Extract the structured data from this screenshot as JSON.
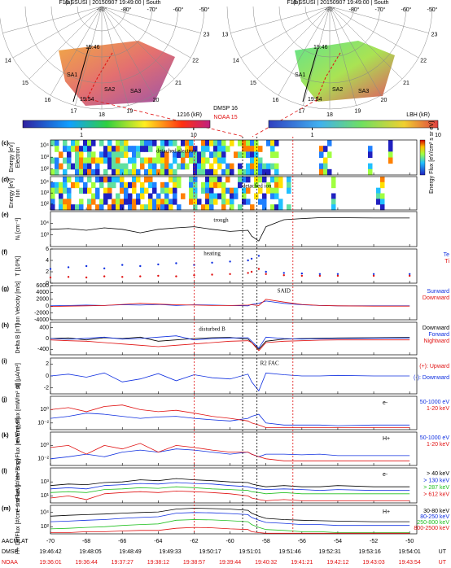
{
  "polar_plots": [
    {
      "label": "(a)",
      "header": "F16 SSUSI  |  20150907 19:49:00  |  South",
      "lat_labels": [
        "-90°",
        "-80°",
        "-70°",
        "-60°",
        "-50°"
      ],
      "hour_labels": [
        "13",
        "14",
        "15",
        "16",
        "17",
        "18",
        "19",
        "20",
        "21",
        "22",
        "23"
      ],
      "notes": [
        "19:46",
        "SA1",
        "SA2",
        "SA3",
        "19:54"
      ],
      "colorbar": {
        "label": "1216 (kR)",
        "lim": [
          0.3,
          14
        ],
        "ticks": [
          1,
          10
        ]
      }
    },
    {
      "label": "(b)",
      "header": "F16 SSUSI  |  20150907 19:49:00  |  South",
      "lat_labels": [
        "-90°",
        "-80°",
        "-70°",
        "-60°",
        "-50°"
      ],
      "hour_labels": [
        "13",
        "14",
        "15",
        "16",
        "17",
        "18",
        "19",
        "20",
        "21",
        "22",
        "23"
      ],
      "notes": [
        "19:46",
        "SA1",
        "SA2",
        "SA3",
        "19:54"
      ],
      "colorbar": {
        "label": "LBH (kR)",
        "lim": [
          0.45,
          10
        ],
        "ticks": [
          1,
          10
        ]
      }
    }
  ],
  "satellites": [
    {
      "name": "DMSP 16",
      "color": "#000000"
    },
    {
      "name": "NOAA 15",
      "color": "#e01010"
    }
  ],
  "panels": {
    "x": [
      -70,
      -69,
      -68,
      -67,
      -66,
      -65,
      -64,
      -63,
      -62,
      -61,
      -60,
      -59,
      -58.8,
      -58.4,
      -58,
      -57,
      -56,
      -55,
      -54,
      -52,
      -50
    ],
    "xlim": [
      -70,
      -49.6
    ],
    "xticks": [
      -70,
      -68,
      -66,
      -64,
      -62,
      -60,
      -58,
      -56,
      -54,
      -52,
      -50
    ],
    "x_label": "AACMLAT",
    "vlines": [
      {
        "x": -62,
        "color": "#e01010"
      },
      {
        "x": -59.3,
        "color": "#000000"
      },
      {
        "x": -58.5,
        "color": "#000000"
      },
      {
        "x": -56.5,
        "color": "#e01010"
      }
    ],
    "items": [
      {
        "label": "(c)",
        "type": "spectrogram",
        "ylabel": "Energy [eV]",
        "species": "Electron",
        "log": true,
        "ylim": [
          30,
          30000
        ],
        "yticks": [
          {
            "value": 100,
            "label": "10²"
          },
          {
            "value": 1000,
            "label": "10³"
          },
          {
            "value": 10000,
            "label": "10⁴"
          }
        ],
        "annotations": [
          "detached electron"
        ],
        "colorbar_label": "Energy Flux [eV/cm² s sr eV]"
      },
      {
        "label": "(d)",
        "type": "spectrogram",
        "ylabel": "Energy [eV]",
        "species": "Ion",
        "log": true,
        "ylim": [
          30,
          30000
        ],
        "yticks": [
          {
            "value": 100,
            "label": "10²"
          },
          {
            "value": 1000,
            "label": "10³"
          },
          {
            "value": 10000,
            "label": "10⁴"
          }
        ],
        "annotations": [
          "detached ion"
        ]
      },
      {
        "label": "(e)",
        "type": "line",
        "ylabel": "Nᵢ [cm⁻³]",
        "log": true,
        "ylim": [
          100,
          100000
        ],
        "yticks": [
          {
            "value": 1000,
            "label": "10³"
          },
          {
            "value": 10000,
            "label": "10⁴"
          }
        ],
        "series": [
          {
            "color": "#000000",
            "values": [
              3000,
              3500,
              2500,
              4000,
              3000,
              1500,
              3000,
              4000,
              5000,
              3000,
              2000,
              2500,
              800,
              300,
              5000,
              20000,
              25000,
              30000,
              30000,
              28000,
              28000
            ]
          }
        ],
        "annotations": [
          "trough"
        ]
      },
      {
        "label": "(f)",
        "type": "scatter",
        "ylabel": "T [10³K]",
        "ylim": [
          0,
          6
        ],
        "yticks": [
          0,
          2,
          4,
          6
        ],
        "series": [
          {
            "name": "Te",
            "color": "#1030e0",
            "values": [
              2.5,
              2.8,
              3,
              2.6,
              3.2,
              3,
              3.3,
              3.5,
              3.2,
              3.6,
              3.8,
              4,
              4.3,
              4.8,
              2,
              1.8,
              1.7,
              1.6,
              1.6,
              1.6,
              1.6
            ]
          },
          {
            "name": "Ti",
            "color": "#e01010",
            "values": [
              1,
              1.1,
              1,
              1.2,
              1.1,
              1.2,
              1.3,
              1.2,
              1.4,
              1.5,
              1.6,
              1.8,
              2,
              2.5,
              1.6,
              1.4,
              1.3,
              1.3,
              1.3,
              1.3,
              1.3
            ]
          }
        ],
        "annotations": [
          "heating"
        ]
      },
      {
        "label": "(g)",
        "type": "line",
        "ylabel": "Ion Velocity [m/s]",
        "ylim": [
          -4000,
          6000
        ],
        "yticks": [
          -4000,
          -2000,
          0,
          2000,
          4000,
          6000
        ],
        "series": [
          {
            "name": "Sunward",
            "color": "#1030e0",
            "values": [
              100,
              200,
              300,
              200,
              400,
              300,
              500,
              200,
              400,
              300,
              200,
              100,
              500,
              800,
              1500,
              800,
              400,
              200,
              100,
              100,
              100
            ]
          },
          {
            "name": "Downward",
            "color": "#e01010",
            "values": [
              -100,
              0,
              100,
              200,
              500,
              800,
              600,
              400,
              300,
              200,
              200,
              300,
              400,
              200,
              2000,
              1200,
              500,
              200,
              100,
              0,
              0
            ]
          }
        ],
        "annotations": [
          "SAID"
        ]
      },
      {
        "label": "(h)",
        "type": "line",
        "ylabel": "Delta B [nT]",
        "ylim": [
          -600,
          600
        ],
        "yticks": [
          -400,
          0,
          400
        ],
        "series": [
          {
            "name": "Downward",
            "color": "#000000",
            "values": [
              0,
              20,
              -50,
              30,
              0,
              50,
              -100,
              -50,
              0,
              30,
              40,
              -20,
              -150,
              -400,
              -100,
              -20,
              0,
              10,
              20,
              30,
              40
            ]
          },
          {
            "name": "Forward",
            "color": "#1030e0",
            "values": [
              0,
              -30,
              10,
              50,
              -20,
              0,
              50,
              100,
              -50,
              0,
              20,
              30,
              -100,
              -350,
              50,
              0,
              -20,
              -10,
              0,
              10,
              20
            ]
          },
          {
            "name": "Nightward",
            "color": "#e01010",
            "values": [
              -50,
              -80,
              -100,
              -150,
              -200,
              -250,
              -300,
              -250,
              -200,
              -150,
              -100,
              -80,
              -150,
              -450,
              -150,
              -100,
              -80,
              -60,
              -50,
              -50,
              -50
            ]
          }
        ],
        "annotations": [
          "disturbed B"
        ]
      },
      {
        "label": "(i)",
        "type": "line",
        "ylabel": "J∥ [μA/m²]",
        "ylim": [
          -3,
          3
        ],
        "yticks": [
          -2,
          0,
          2
        ],
        "series": [
          {
            "color": "#1030e0",
            "values": [
              0,
              0.3,
              -0.2,
              0.5,
              -1,
              -0.5,
              0.4,
              -0.8,
              0.2,
              -0.3,
              -0.5,
              0.3,
              -1,
              -2.5,
              0.5,
              0.2,
              0,
              0,
              0.1,
              0,
              0
            ]
          }
        ],
        "legend_items": [
          {
            "text": "(+): Upward",
            "color": "#e01010"
          },
          {
            "text": "(-): Downward",
            "color": "#1030e0"
          }
        ],
        "annotations": [
          "R2 FAC"
        ]
      },
      {
        "label": "(j)",
        "type": "line",
        "title": "e-",
        "ylabel": "e- EngyFlux [mW/m² sr]",
        "log": true,
        "ylim": [
          0.001,
          100
        ],
        "yticks": [
          {
            "value": 0.01,
            "label": "10⁻²"
          },
          {
            "value": 1,
            "label": "10⁰"
          }
        ],
        "series": [
          {
            "name": "50-1000 eV",
            "color": "#1030e0",
            "values": [
              0.05,
              0.1,
              0.3,
              0.2,
              0.1,
              0.05,
              0.08,
              0.1,
              0.05,
              0.03,
              0.02,
              0.05,
              0.1,
              0.2,
              0.01,
              0.005,
              0.005,
              0.005,
              0.004,
              0.005,
              0.005
            ]
          },
          {
            "name": "1-20 keV",
            "color": "#e01010",
            "values": [
              1,
              2,
              0.5,
              3,
              5,
              1,
              0.5,
              0.8,
              0.3,
              0.1,
              0.05,
              0.02,
              0.01,
              0.005,
              0.002,
              0.002,
              0.002,
              0.002,
              0.002,
              0.002,
              0.002
            ]
          }
        ]
      },
      {
        "label": "(k)",
        "type": "line",
        "title": "H+",
        "ylabel": "H+ EngyFlux [mW/m² sr]",
        "log": true,
        "ylim": [
          0.001,
          100
        ],
        "yticks": [
          {
            "value": 0.01,
            "label": "10⁻²"
          },
          {
            "value": 1,
            "label": "10⁰"
          }
        ],
        "series": [
          {
            "name": "50-1000 eV",
            "color": "#1030e0",
            "values": [
              0.01,
              0.02,
              0.05,
              0.02,
              0.1,
              0.2,
              0.1,
              0.3,
              0.2,
              0.1,
              0.05,
              0.1,
              0.05,
              0.02,
              0.05,
              0.05,
              0.04,
              0.05,
              0.03,
              0.03,
              0.03
            ]
          },
          {
            "name": "1-20 keV",
            "color": "#e01010",
            "values": [
              0.5,
              1,
              0.05,
              1,
              0.3,
              2,
              0.1,
              1,
              0.5,
              0.2,
              0.1,
              0.1,
              0.05,
              0.02,
              0.01,
              0.005,
              0.005,
              0.005,
              0.005,
              0.005,
              0.005
            ]
          }
        ]
      },
      {
        "label": "(l)",
        "type": "line",
        "title": "e-",
        "ylabel": "e- IntFlux [#/cm² s sr]",
        "log": true,
        "ylim": [
          1,
          100000
        ],
        "yticks": [
          {
            "value": 10,
            "label": "10¹"
          },
          {
            "value": 1000,
            "label": "10³"
          }
        ],
        "series": [
          {
            "name": "> 40 keV",
            "color": "#000000",
            "values": [
              300,
              500,
              400,
              800,
              1000,
              2000,
              1500,
              3000,
              2000,
              1500,
              1000,
              800,
              500,
              300,
              200,
              300,
              200,
              200,
              300,
              200,
              200
            ]
          },
          {
            "name": "> 130 keV",
            "color": "#1030e0",
            "values": [
              100,
              150,
              100,
              300,
              400,
              600,
              500,
              800,
              600,
              500,
              300,
              200,
              150,
              100,
              80,
              100,
              80,
              60,
              80,
              60,
              60
            ]
          },
          {
            "name": "> 287 keV",
            "color": "#20c020",
            "values": [
              30,
              40,
              30,
              80,
              100,
              150,
              120,
              200,
              150,
              100,
              80,
              60,
              40,
              30,
              20,
              30,
              20,
              20,
              20,
              20,
              20
            ]
          },
          {
            "name": "> 612 keV",
            "color": "#e01010",
            "values": [
              5,
              10,
              3,
              20,
              30,
              40,
              30,
              50,
              40,
              30,
              20,
              10,
              5,
              3,
              2,
              3,
              2,
              2,
              2,
              2,
              2
            ]
          }
        ]
      },
      {
        "label": "(m)",
        "type": "line",
        "title": "H+",
        "ylabel": "H+ DiffFlux [#/cm² s sr keV]",
        "log": true,
        "ylim": [
          10,
          100000
        ],
        "yticks": [
          {
            "value": 100,
            "label": "10²"
          },
          {
            "value": 10000,
            "label": "10⁴"
          }
        ],
        "series": [
          {
            "name": "30-80 keV",
            "color": "#000000",
            "values": [
              3000,
              4000,
              5000,
              6000,
              8000,
              10000,
              12000,
              30000,
              40000,
              35000,
              30000,
              20000,
              8000,
              3000,
              1500,
              1000,
              800,
              700,
              600,
              500,
              500
            ]
          },
          {
            "name": "80-250 keV",
            "color": "#1030e0",
            "values": [
              500,
              600,
              800,
              1000,
              1500,
              2000,
              2500,
              8000,
              10000,
              9000,
              7000,
              5000,
              2000,
              800,
              400,
              300,
              200,
              200,
              150,
              150,
              150
            ]
          },
          {
            "name": "250-800 keV",
            "color": "#20c020",
            "values": [
              50,
              60,
              80,
              100,
              150,
              200,
              250,
              800,
              1000,
              900,
              700,
              500,
              200,
              80,
              40,
              30,
              20,
              20,
              15,
              15,
              15
            ]
          },
          {
            "name": "800-2500 keV",
            "color": "#e01010",
            "values": [
              15,
              15,
              20,
              20,
              25,
              30,
              30,
              60,
              80,
              70,
              50,
              40,
              20,
              15,
              12,
              12,
              12,
              12,
              12,
              12,
              12
            ]
          }
        ]
      }
    ]
  },
  "time_rows": [
    {
      "name": "DMSP",
      "color": "#000000",
      "unit": "UT",
      "times": [
        "19:46:42",
        "19:48:05",
        "19:48:49",
        "19:49:33",
        "19:50:17",
        "19:51:01",
        "19:51:46",
        "19:52:31",
        "19:53:16",
        "19:54:01"
      ]
    },
    {
      "name": "NOAA",
      "color": "#e01010",
      "unit": "UT",
      "times": [
        "19:36:01",
        "19:36:44",
        "19:37:27",
        "19:38:12",
        "19:38:57",
        "19:39:44",
        "19:40:32",
        "19:41:21",
        "19:42:12",
        "19:43:03",
        "19:43:54"
      ]
    }
  ]
}
